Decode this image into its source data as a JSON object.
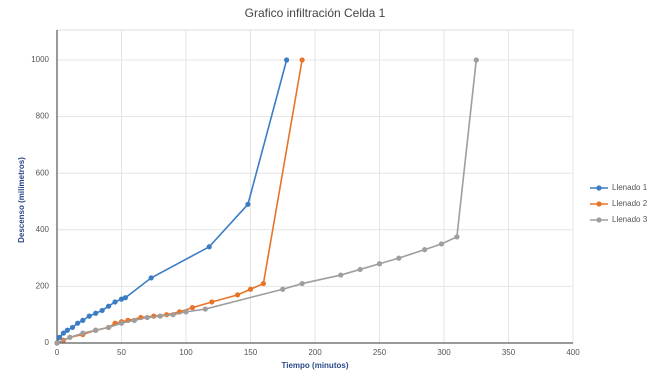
{
  "chart_data": {
    "type": "line",
    "title": "Grafico infiltración Celda 1",
    "x_label": "Tiempo (minutos)",
    "y_label": "Descenso (milímetros)",
    "xlim": [
      0,
      400
    ],
    "xticks": [
      0,
      50,
      100,
      150,
      200,
      250,
      300,
      350,
      400
    ],
    "ylim": [
      0,
      1000
    ],
    "yticks": [
      0,
      200,
      400,
      600,
      800,
      1000
    ],
    "grid": true,
    "legend": "right",
    "series": [
      {
        "name": "Llenado 1",
        "color": "#3b7dc4",
        "x": [
          0,
          2,
          5,
          8,
          12,
          16,
          20,
          25,
          30,
          35,
          40,
          45,
          50,
          53,
          73,
          118,
          148,
          178
        ],
        "values": [
          0,
          20,
          35,
          45,
          55,
          70,
          80,
          95,
          105,
          115,
          130,
          145,
          155,
          160,
          230,
          340,
          490,
          1000
        ]
      },
      {
        "name": "Llenado 2",
        "color": "#e8742a",
        "x": [
          0,
          5,
          10,
          20,
          30,
          40,
          45,
          50,
          55,
          65,
          75,
          85,
          95,
          105,
          120,
          140,
          150,
          160,
          190
        ],
        "values": [
          0,
          10,
          20,
          30,
          45,
          55,
          70,
          75,
          80,
          90,
          95,
          100,
          110,
          125,
          145,
          170,
          190,
          210,
          1000
        ]
      },
      {
        "name": "Llenado 3",
        "color": "#9e9e9e",
        "x": [
          0,
          10,
          20,
          30,
          40,
          50,
          60,
          70,
          80,
          90,
          100,
          115,
          175,
          190,
          220,
          235,
          250,
          265,
          285,
          298,
          310,
          325
        ],
        "values": [
          0,
          20,
          35,
          45,
          55,
          70,
          80,
          90,
          95,
          100,
          110,
          120,
          190,
          210,
          240,
          260,
          280,
          300,
          330,
          350,
          375,
          1000
        ]
      }
    ]
  }
}
